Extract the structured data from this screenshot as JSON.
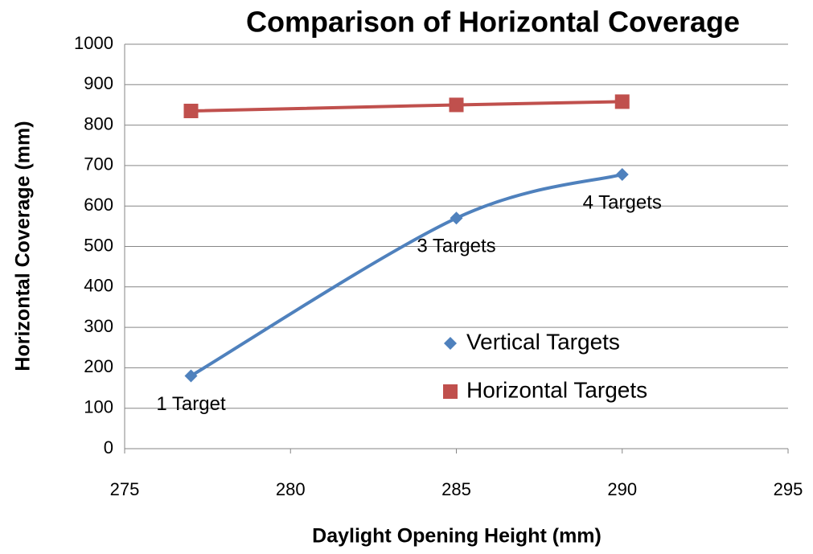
{
  "chart_data": {
    "type": "scatter",
    "title": "Comparison of Horizontal Coverage",
    "x_label": "Daylight Opening Height (mm)",
    "y_label": "Horizontal Coverage (mm)",
    "xlim": [
      275,
      295
    ],
    "xticks": [
      275,
      280,
      285,
      290,
      295
    ],
    "ylim": [
      0,
      1000
    ],
    "yticks": [
      0,
      100,
      200,
      300,
      400,
      500,
      600,
      700,
      800,
      900,
      1000
    ],
    "grid": true,
    "legend": "lower right",
    "series": [
      {
        "name": "Vertical Targets",
        "color": "#4f81bd",
        "marker": "diamond",
        "smooth": true,
        "x": [
          277,
          285,
          290
        ],
        "values": [
          180,
          570,
          678
        ],
        "annotations": [
          "1 Target",
          "3 Targets",
          "4 Targets"
        ]
      },
      {
        "name": "Horizontal Targets",
        "color": "#c0504d",
        "marker": "square",
        "smooth": false,
        "x": [
          277,
          285,
          290
        ],
        "values": [
          835,
          850,
          858
        ]
      }
    ]
  }
}
